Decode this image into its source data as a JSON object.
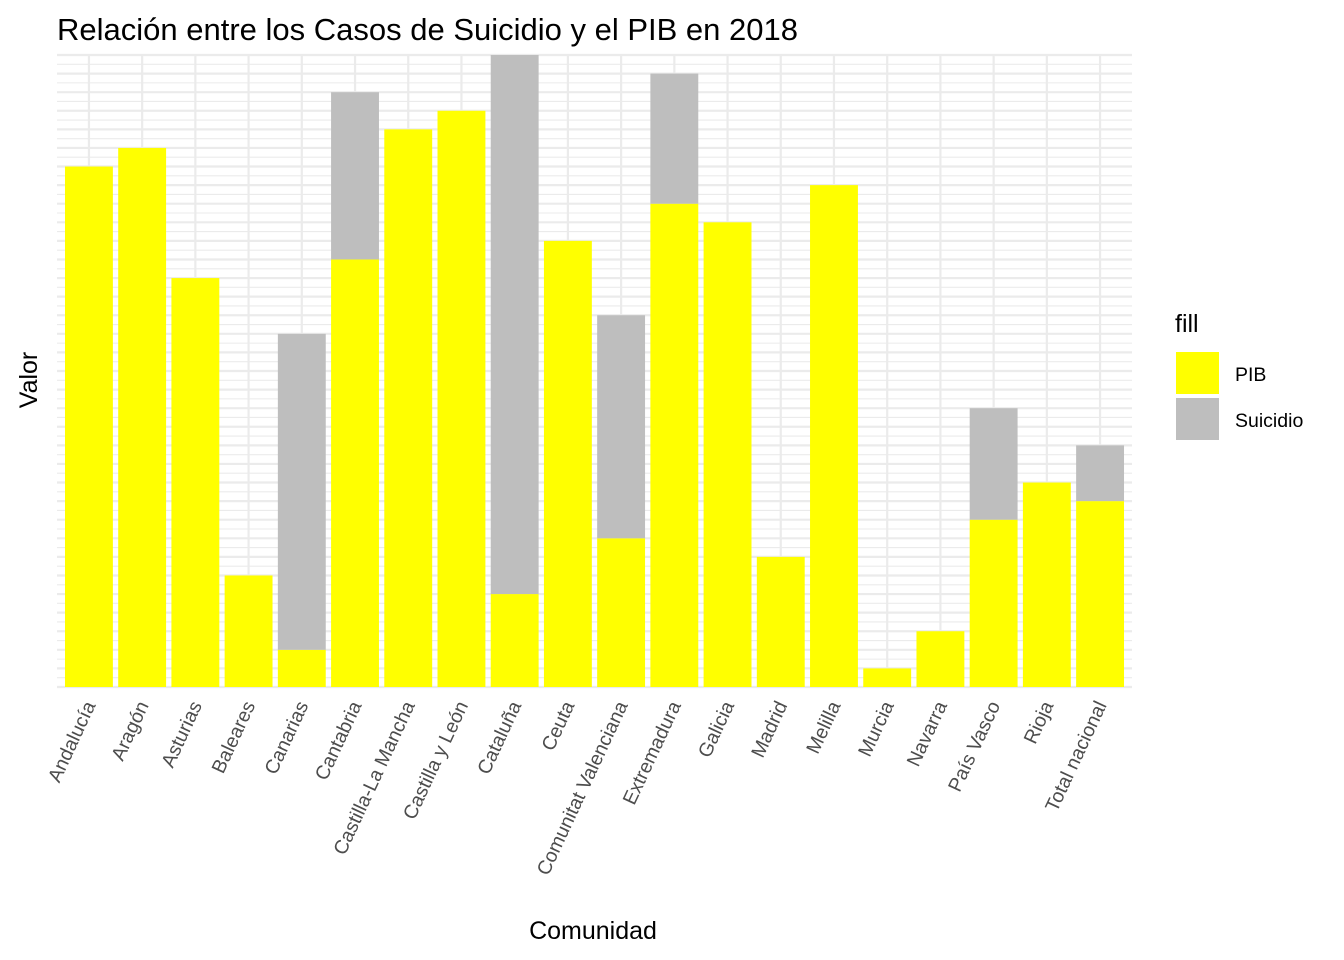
{
  "chart_data": {
    "type": "bar",
    "stacked": true,
    "title": "Relación entre los Casos de Suicidio y el PIB en 2018",
    "xlabel": "Comunidad",
    "ylabel": "Valor",
    "y_ticks_shown": false,
    "ylim": [
      0,
      34
    ],
    "grid": true,
    "legend": {
      "title": "fill",
      "position": "right"
    },
    "categories": [
      "Andalucía",
      "Aragón",
      "Asturias",
      "Baleares",
      "Canarias",
      "Cantabria",
      "Castilla-La Mancha",
      "Castilla y León",
      "Cataluña",
      "Ceuta",
      "Comunitat Valenciana",
      "Extremadura",
      "Galicia",
      "Madrid",
      "Melilla",
      "Murcia",
      "Navarra",
      "País Vasco",
      "Rioja",
      "Total nacional"
    ],
    "series": [
      {
        "name": "PIB",
        "color": "#ffff00",
        "values": [
          28,
          29,
          22,
          6,
          2,
          23,
          30,
          31,
          5,
          24,
          8,
          26,
          25,
          7,
          27,
          1,
          3,
          9,
          11,
          10
        ]
      },
      {
        "name": "Suicidio",
        "color": "#bebebe",
        "values": [
          0,
          0,
          0,
          0,
          17,
          9,
          0,
          0,
          29,
          0,
          12,
          7,
          0,
          0,
          0,
          0,
          0,
          6,
          0,
          3
        ]
      }
    ]
  }
}
